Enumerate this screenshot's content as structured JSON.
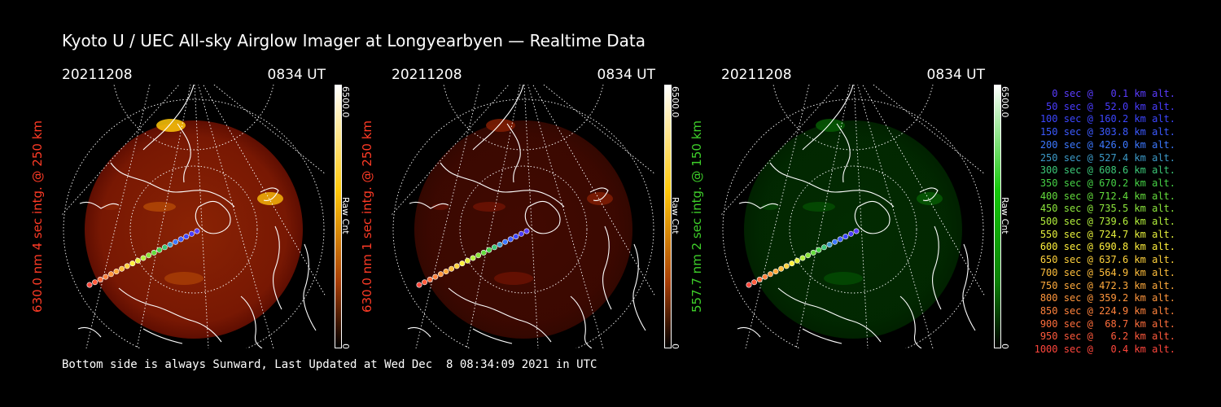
{
  "title": "Kyoto U / UEC All-sky Airglow Imager at Longyearbyen — Realtime Data",
  "footer": "Bottom side is always Sunward, Last Updated at Wed Dec  8 08:34:09 2021 in UTC",
  "panels": [
    {
      "date": "20211208",
      "time": "0834 UT",
      "side_label": "630.0 nm 4 sec intg. @ 250 km",
      "side_color": "#ff3b26",
      "cbar_max": "6500.0",
      "cbar_min": "0",
      "cbar_unit": "Raw Cnt",
      "colormap": "red",
      "intensity": 1.0
    },
    {
      "date": "20211208",
      "time": "0834 UT",
      "side_label": "630.0 nm 1 sec intg. @ 250 km",
      "side_color": "#ff3b26",
      "cbar_max": "6500.0",
      "cbar_min": "0",
      "cbar_unit": "Raw Cnt",
      "colormap": "red",
      "intensity": 0.3
    },
    {
      "date": "20211208",
      "time": "0834 UT",
      "side_label": "557.7 nm 2 sec intg. @ 150 km",
      "side_color": "#3ecf2a",
      "cbar_max": "6500.0",
      "cbar_min": "0",
      "cbar_unit": "Raw Cnt",
      "colormap": "green",
      "intensity": 0.25
    }
  ],
  "legend": [
    {
      "text": "0 sec @   0.1 km alt.",
      "color": "#5a3cff"
    },
    {
      "text": "50 sec @  52.0 km alt.",
      "color": "#4a3cff"
    },
    {
      "text": "100 sec @ 160.2 km alt.",
      "color": "#3c46ff"
    },
    {
      "text": "150 sec @ 303.8 km alt.",
      "color": "#3c5aff"
    },
    {
      "text": "200 sec @ 426.0 km alt.",
      "color": "#3c78ff"
    },
    {
      "text": "250 sec @ 527.4 km alt.",
      "color": "#3c9ac8"
    },
    {
      "text": "300 sec @ 608.6 km alt.",
      "color": "#3cc878"
    },
    {
      "text": "350 sec @ 670.2 km alt.",
      "color": "#46d246"
    },
    {
      "text": "400 sec @ 712.4 km alt.",
      "color": "#64dc3c"
    },
    {
      "text": "450 sec @ 735.5 km alt.",
      "color": "#8ce63c"
    },
    {
      "text": "500 sec @ 739.6 km alt.",
      "color": "#b4f03c"
    },
    {
      "text": "550 sec @ 724.7 km alt.",
      "color": "#e6f03c"
    },
    {
      "text": "600 sec @ 690.8 km alt.",
      "color": "#fff03c"
    },
    {
      "text": "650 sec @ 637.6 km alt.",
      "color": "#ffd23c"
    },
    {
      "text": "700 sec @ 564.9 km alt.",
      "color": "#ffbe3c"
    },
    {
      "text": "750 sec @ 472.3 km alt.",
      "color": "#ffaa3c"
    },
    {
      "text": "800 sec @ 359.2 km alt.",
      "color": "#ff963c"
    },
    {
      "text": "850 sec @ 224.9 km alt.",
      "color": "#ff823c"
    },
    {
      "text": "900 sec @  68.7 km alt.",
      "color": "#ff6e3c"
    },
    {
      "text": "950 sec @   6.2 km alt.",
      "color": "#ff5a3c"
    },
    {
      "text": "1000 sec @   0.4 km alt.",
      "color": "#ff463c"
    }
  ]
}
